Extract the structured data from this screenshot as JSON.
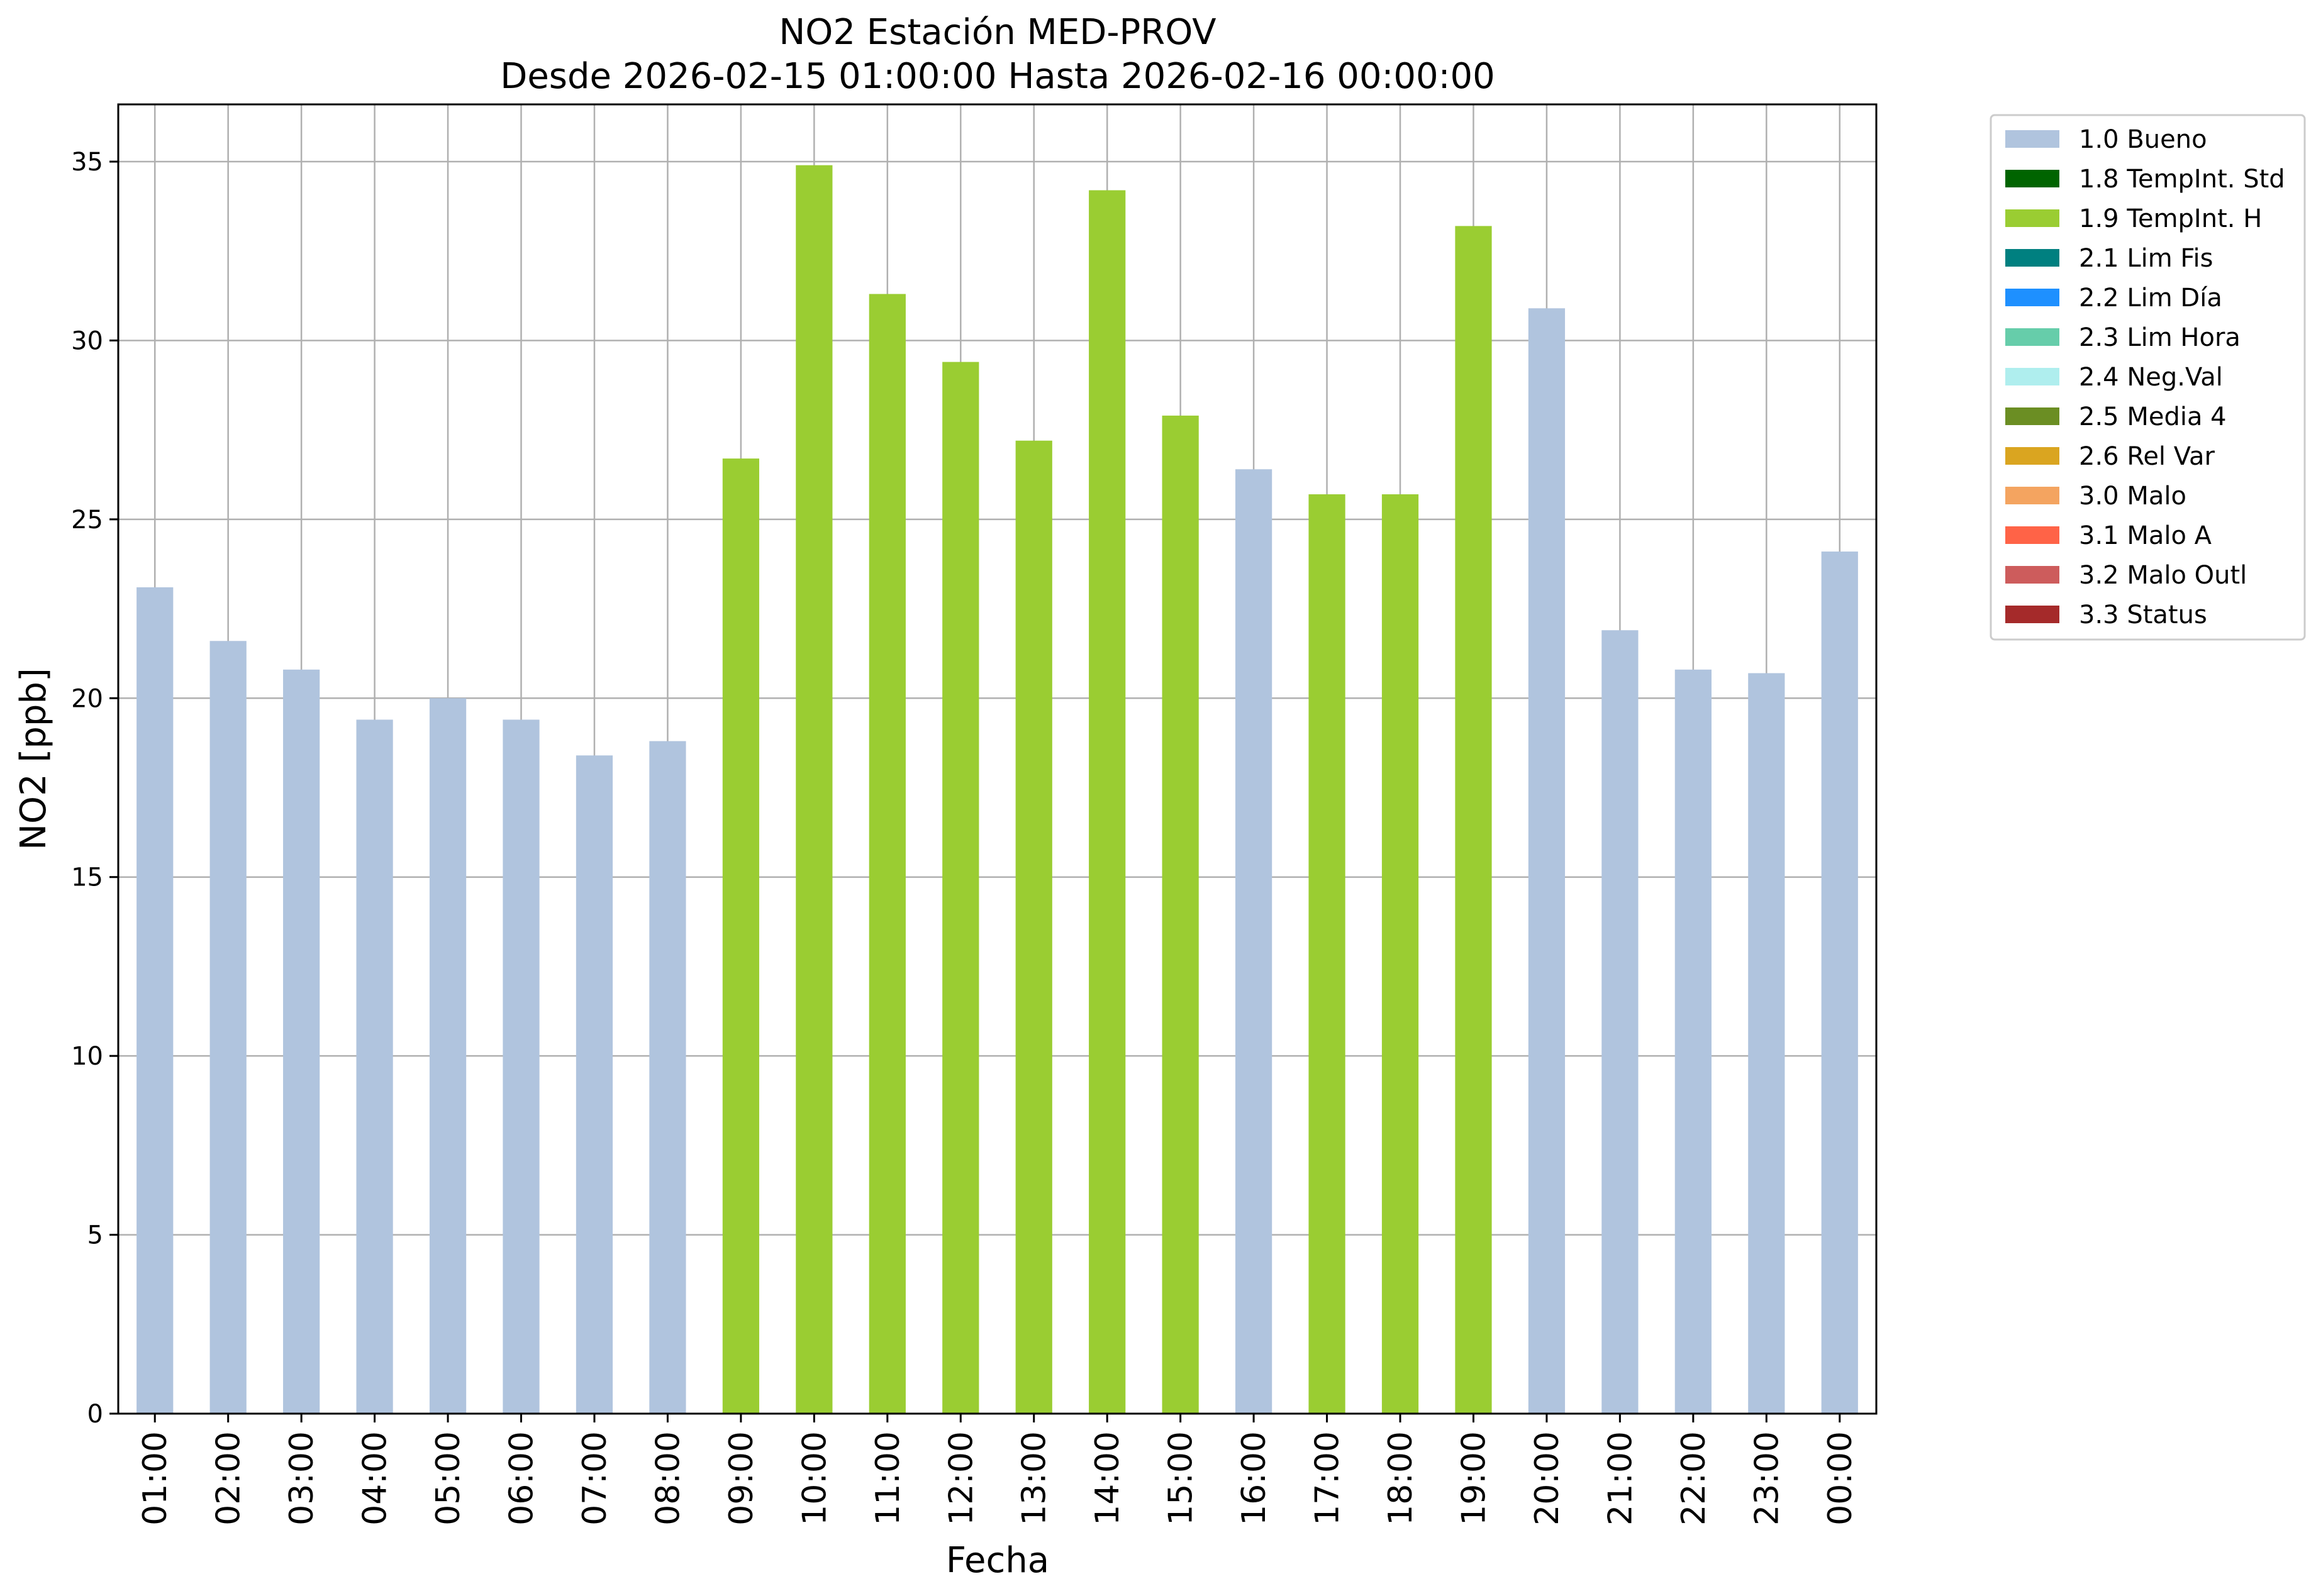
{
  "chart_data": {
    "type": "bar",
    "title": "NO2 Estación MED-PROV",
    "subtitle": "Desde 2026-02-15 01:00:00 Hasta 2026-02-16 00:00:00",
    "xlabel": "Fecha",
    "ylabel": "NO2 [ppb]",
    "ylim": [
      0,
      36.6
    ],
    "yticks": [
      "0",
      "5",
      "10",
      "15",
      "20",
      "25",
      "30",
      "35"
    ],
    "grid": true,
    "legend_position": "outside-top-right",
    "categories": [
      "01:00",
      "02:00",
      "03:00",
      "04:00",
      "05:00",
      "06:00",
      "07:00",
      "08:00",
      "09:00",
      "10:00",
      "11:00",
      "12:00",
      "13:00",
      "14:00",
      "15:00",
      "16:00",
      "17:00",
      "18:00",
      "19:00",
      "20:00",
      "21:00",
      "22:00",
      "23:00",
      "00:00"
    ],
    "values": [
      23.1,
      21.6,
      20.8,
      19.4,
      20.0,
      19.4,
      18.4,
      18.8,
      26.7,
      34.9,
      31.3,
      29.4,
      27.2,
      34.2,
      27.9,
      26.4,
      25.7,
      25.7,
      33.2,
      30.9,
      21.9,
      20.8,
      20.7,
      24.1
    ],
    "flags": [
      "1.0 Bueno",
      "1.0 Bueno",
      "1.0 Bueno",
      "1.0 Bueno",
      "1.0 Bueno",
      "1.0 Bueno",
      "1.0 Bueno",
      "1.0 Bueno",
      "1.9 TempInt. H",
      "1.9 TempInt. H",
      "1.9 TempInt. H",
      "1.9 TempInt. H",
      "1.9 TempInt. H",
      "1.9 TempInt. H",
      "1.9 TempInt. H",
      "1.0 Bueno",
      "1.9 TempInt. H",
      "1.9 TempInt. H",
      "1.9 TempInt. H",
      "1.0 Bueno",
      "1.0 Bueno",
      "1.0 Bueno",
      "1.0 Bueno",
      "1.0 Bueno"
    ],
    "legend": [
      {
        "name": "1.0 Bueno",
        "color": "#b0c4de"
      },
      {
        "name": "1.8 TempInt. Std",
        "color": "#006400"
      },
      {
        "name": "1.9 TempInt. H",
        "color": "#9acd32"
      },
      {
        "name": "2.1 Lim Fis",
        "color": "#008080"
      },
      {
        "name": "2.2 Lim Día",
        "color": "#1e90ff"
      },
      {
        "name": "2.3 Lim Hora",
        "color": "#66cdaa"
      },
      {
        "name": "2.4 Neg.Val",
        "color": "#afeeee"
      },
      {
        "name": "2.5 Media 4",
        "color": "#6b8e23"
      },
      {
        "name": "2.6 Rel Var",
        "color": "#daa520"
      },
      {
        "name": "3.0 Malo",
        "color": "#f4a460"
      },
      {
        "name": "3.1 Malo A",
        "color": "#ff6347"
      },
      {
        "name": "3.2 Malo Outl",
        "color": "#cd5c5c"
      },
      {
        "name": "3.3 Status",
        "color": "#a52a2a"
      }
    ]
  }
}
